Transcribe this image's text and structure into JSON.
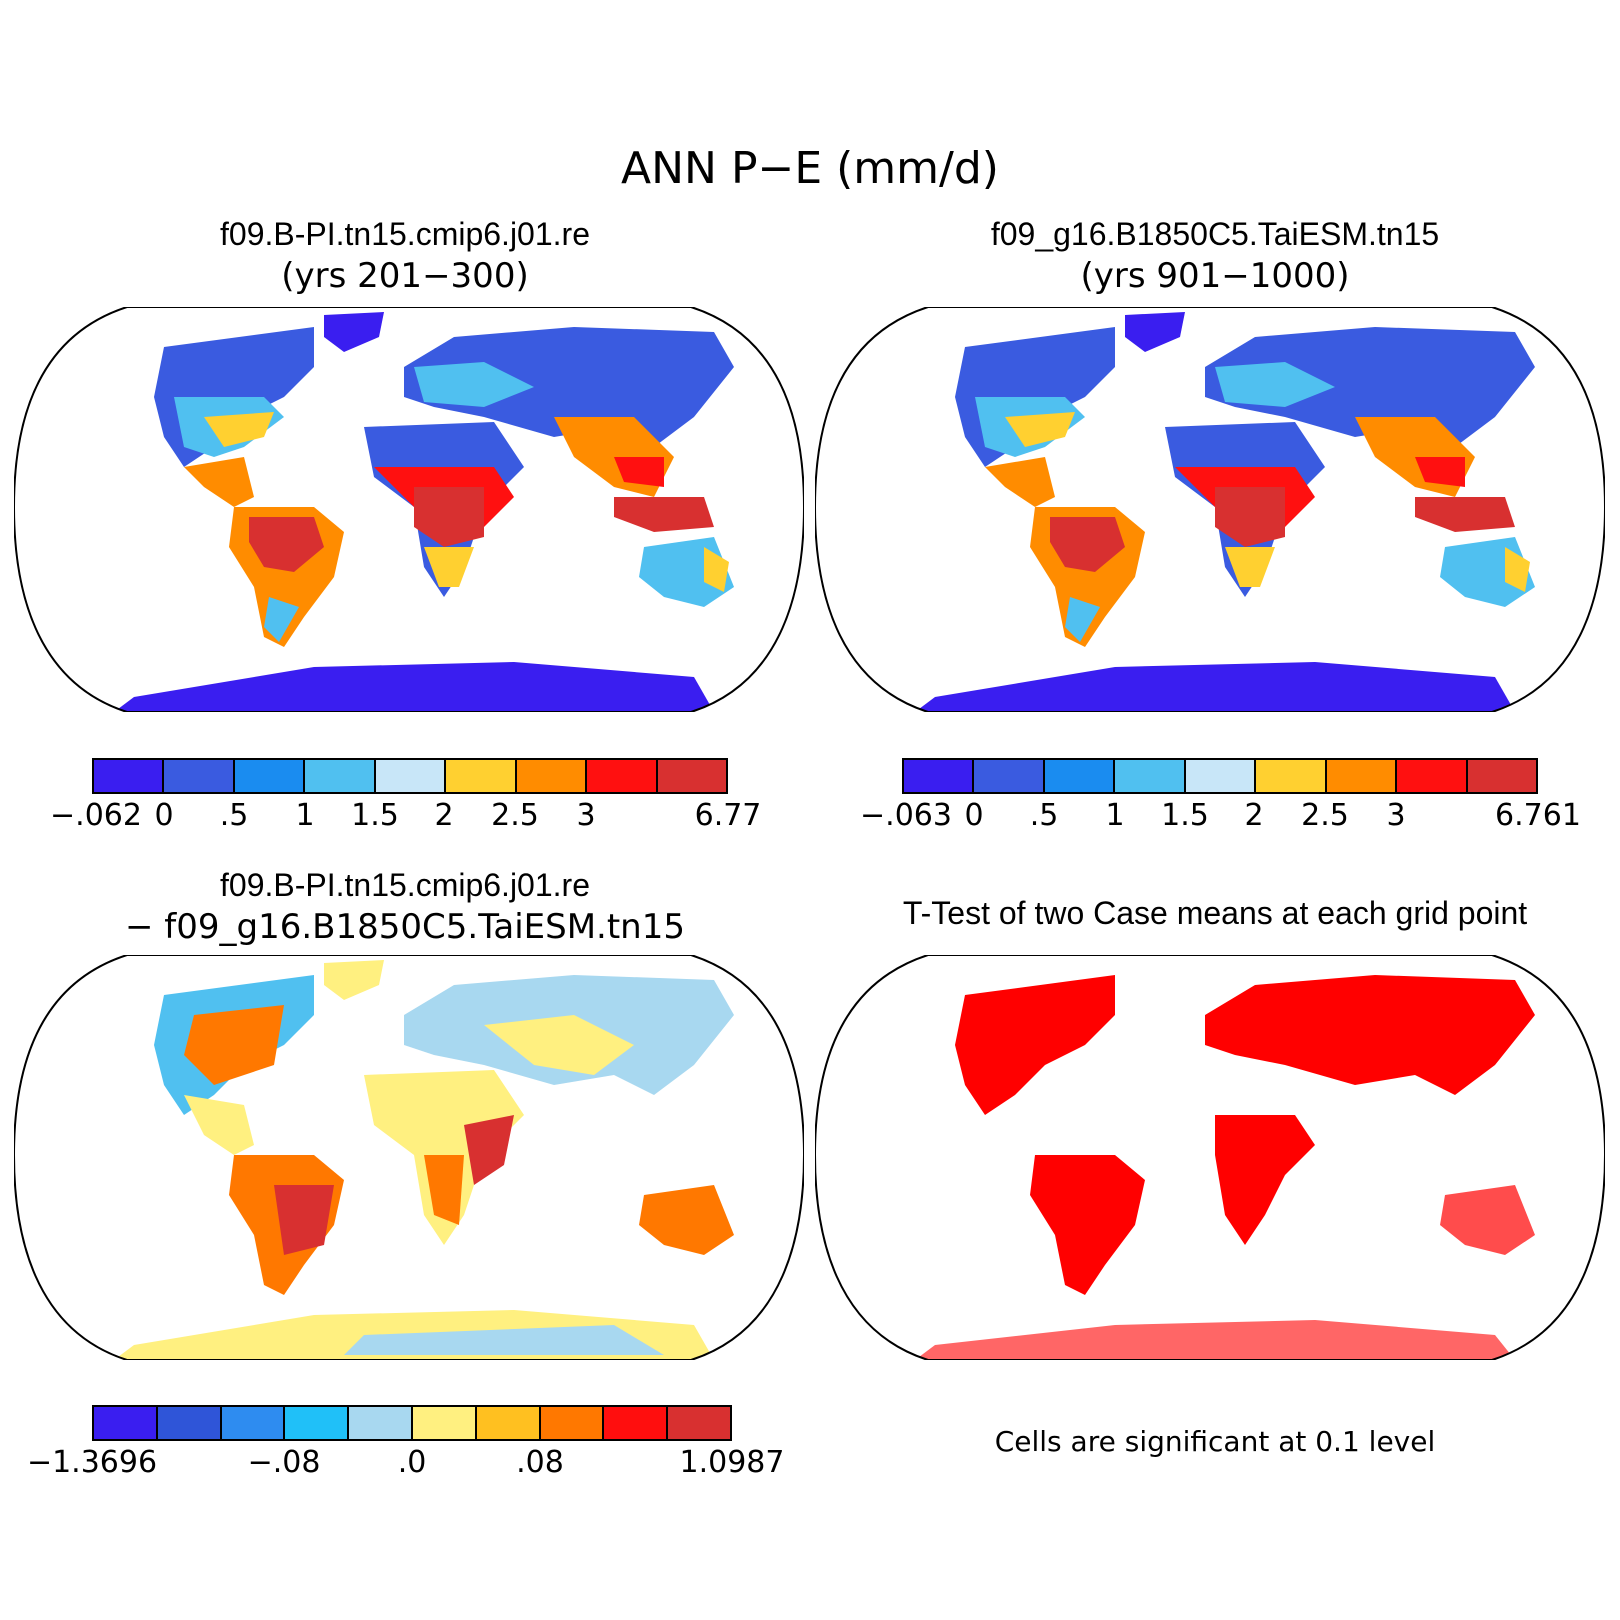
{
  "title": "ANN P−E (mm/d)",
  "panels": {
    "top_left": {
      "title": "f09.B-PI.tn15.cmip6.j01.re",
      "subtitle": "(yrs 201−300)",
      "colorbar": {
        "colors": [
          "#3a1ef0",
          "#3a5be0",
          "#1a8cf0",
          "#50c0f0",
          "#c8e6f8",
          "#ffd030",
          "#ff8c00",
          "#ff1010",
          "#d83030"
        ],
        "labels": [
          "−.062",
          "0",
          ".5",
          "1",
          "1.5",
          "2",
          "2.5",
          "3",
          "6.77"
        ]
      }
    },
    "top_right": {
      "title": "f09_g16.B1850C5.TaiESM.tn15",
      "subtitle": "(yrs 901−1000)",
      "colorbar": {
        "colors": [
          "#3a1ef0",
          "#3a5be0",
          "#1a8cf0",
          "#50c0f0",
          "#c8e6f8",
          "#ffd030",
          "#ff8c00",
          "#ff1010",
          "#d83030"
        ],
        "labels": [
          "−.063",
          "0",
          ".5",
          "1",
          "1.5",
          "2",
          "2.5",
          "3",
          "6.761"
        ]
      }
    },
    "bottom_left": {
      "title": "f09.B-PI.tn15.cmip6.j01.re",
      "subtitle": "− f09_g16.B1850C5.TaiESM.tn15",
      "colorbar": {
        "colors": [
          "#3a1ef0",
          "#2f55d8",
          "#2e8cf0",
          "#20c0f8",
          "#a8d8f0",
          "#fff080",
          "#ffc020",
          "#ff7800",
          "#ff0e0e",
          "#d83030"
        ],
        "labels": [
          "−1.3696",
          "−.08",
          ".0",
          ".08",
          "1.0987"
        ]
      }
    },
    "bottom_right": {
      "title": "T-Test of two Case means at each grid point",
      "note": "Cells are significant at 0.1 level",
      "signif_color": "#ff0000"
    }
  }
}
